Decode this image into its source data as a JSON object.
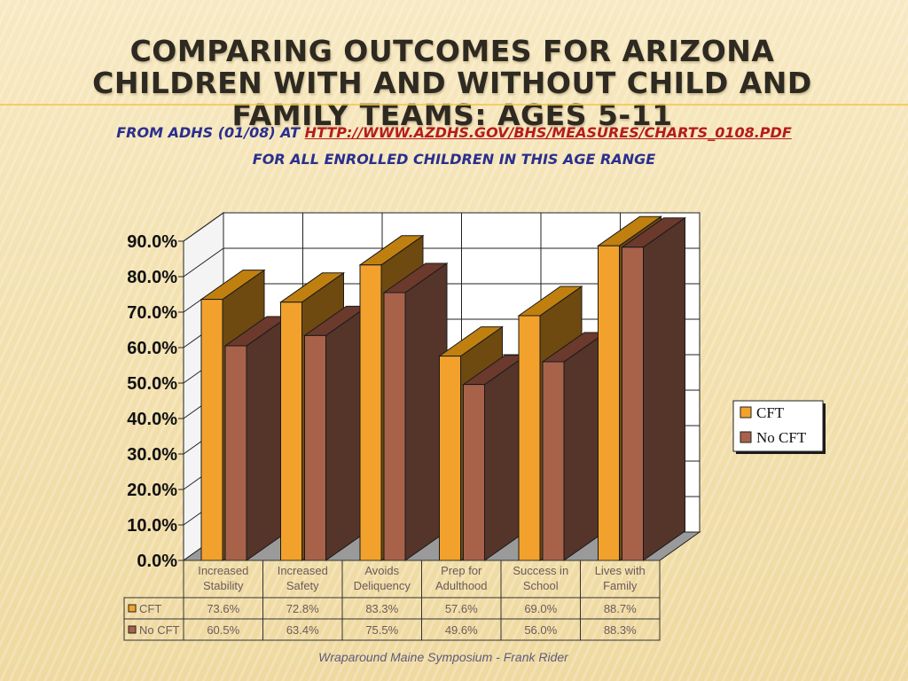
{
  "title": "Comparing Outcomes for Arizona Children with and without Child and Family Teams: Ages 5-11",
  "subtitle": {
    "prefix": "From ADHS (01/08) at ",
    "link": "http://www.azdhs.gov/bhs/measures/charts_0108.pdf",
    "line2": "For all enrolled children in this age range"
  },
  "footer": "Wraparound Maine Symposium - Frank Rider",
  "colors": {
    "cft_front": "#f2a22c",
    "cft_top": "#c0800f",
    "cft_side": "#6e4a10",
    "nocft_front": "#a8624a",
    "nocft_top": "#6b3a2c",
    "nocft_side": "#55342a"
  },
  "chart_data": {
    "type": "bar",
    "categories": [
      [
        "Increased",
        "Stability"
      ],
      [
        "Increased",
        "Safety"
      ],
      [
        "Avoids",
        "Deliquency"
      ],
      [
        "Prep for",
        "Adulthood"
      ],
      [
        "Success in",
        "School"
      ],
      [
        "Lives with",
        "Family"
      ]
    ],
    "series": [
      {
        "name": "CFT",
        "values": [
          73.6,
          72.8,
          83.3,
          57.6,
          69.0,
          88.7
        ],
        "labels": [
          "73.6%",
          "72.8%",
          "83.3%",
          "57.6%",
          "69.0%",
          "88.7%"
        ]
      },
      {
        "name": "No CFT",
        "values": [
          60.5,
          63.4,
          75.5,
          49.6,
          56.0,
          88.3
        ],
        "labels": [
          "60.5%",
          "63.4%",
          "75.5%",
          "49.6%",
          "56.0%",
          "88.3%"
        ]
      }
    ],
    "y_ticks": [
      "0.0%",
      "10.0%",
      "20.0%",
      "30.0%",
      "40.0%",
      "50.0%",
      "60.0%",
      "70.0%",
      "80.0%",
      "90.0%"
    ],
    "ylim": [
      0,
      90
    ],
    "style": "3d-clustered-bar",
    "data_table": true,
    "grid": true,
    "legend_position": "right"
  }
}
